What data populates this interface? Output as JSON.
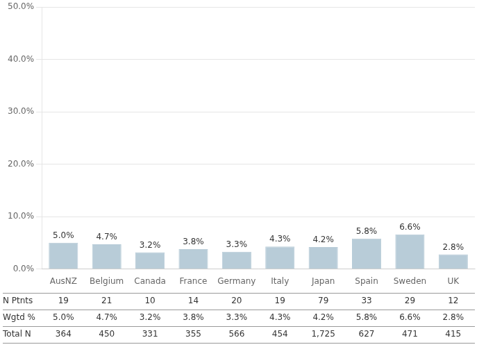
{
  "chart_data": {
    "type": "bar",
    "categories": [
      "AusNZ",
      "Belgium",
      "Canada",
      "France",
      "Germany",
      "Italy",
      "Japan",
      "Spain",
      "Sweden",
      "UK"
    ],
    "values": [
      5.0,
      4.7,
      3.2,
      3.8,
      3.3,
      4.3,
      4.2,
      5.8,
      6.6,
      2.8
    ],
    "value_labels": [
      "5.0%",
      "4.7%",
      "3.2%",
      "3.8%",
      "3.3%",
      "4.3%",
      "4.2%",
      "5.8%",
      "6.6%",
      "2.8%"
    ],
    "data_labels": true,
    "color": "#b8ccd8",
    "ylim": [
      0,
      50
    ],
    "yticks": [
      {
        "value": 0,
        "label": "0.0%"
      },
      {
        "value": 10,
        "label": "10.0%"
      },
      {
        "value": 20,
        "label": "20.0%"
      },
      {
        "value": 30,
        "label": "30.0%"
      },
      {
        "value": 40,
        "label": "40.0%"
      },
      {
        "value": 50,
        "label": "50.0%"
      }
    ],
    "grid": true,
    "table": [
      {
        "label": "N Ptnts",
        "values": [
          "19",
          "21",
          "10",
          "14",
          "20",
          "19",
          "79",
          "33",
          "29",
          "12"
        ]
      },
      {
        "label": "Wgtd %",
        "values": [
          "5.0%",
          "4.7%",
          "3.2%",
          "3.8%",
          "3.3%",
          "4.3%",
          "4.2%",
          "5.8%",
          "6.6%",
          "2.8%"
        ]
      },
      {
        "label": "Total N",
        "values": [
          "364",
          "450",
          "331",
          "355",
          "566",
          "454",
          "1,725",
          "627",
          "471",
          "415"
        ]
      }
    ]
  }
}
